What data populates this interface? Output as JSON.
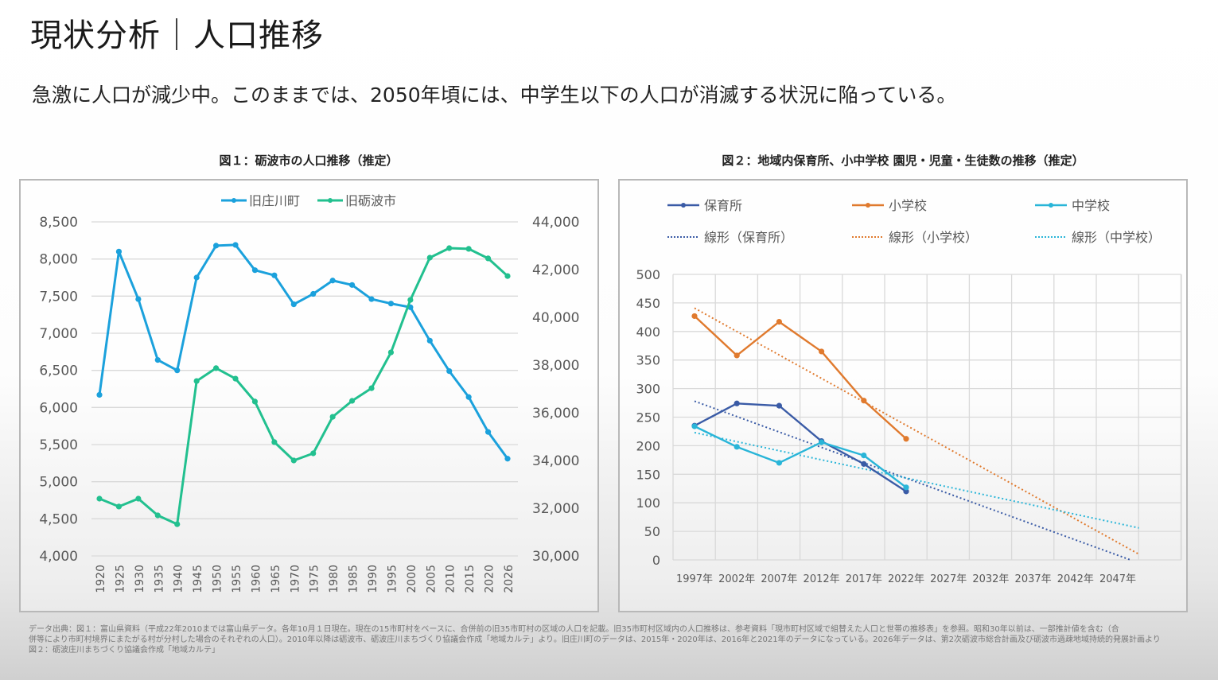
{
  "header": {
    "title": "現状分析｜人口推移",
    "subtitle": "急激に人口が減少中。このままでは、2050年頃には、中学生以下の人口が消滅する状況に陥っている。"
  },
  "colors": {
    "shogawa": "#1ba1dc",
    "tonami": "#22c08f",
    "nursery": "#3a5ba6",
    "elementary": "#e07a2e",
    "junior_high": "#29b5d8",
    "grid": "#d9d9d9",
    "axis_text": "#595959"
  },
  "chart_data": [
    {
      "type": "line",
      "title": "図１：砺波市の人口推移（推定）",
      "xlabel": "",
      "ylabel": "",
      "categories": [
        "1920",
        "1925",
        "1930",
        "1935",
        "1940",
        "1945",
        "1950",
        "1955",
        "1960",
        "1965",
        "1970",
        "1975",
        "1980",
        "1985",
        "1990",
        "1995",
        "2000",
        "2005",
        "2010",
        "2015",
        "2020",
        "2026"
      ],
      "y_left": {
        "range": [
          4000,
          8500
        ],
        "ticks": [
          "4,000",
          "4,500",
          "5,000",
          "5,500",
          "6,000",
          "6,500",
          "7,000",
          "7,500",
          "8,000",
          "8,500"
        ]
      },
      "y_right": {
        "range": [
          30000,
          44000
        ],
        "ticks": [
          "30,000",
          "32,000",
          "34,000",
          "36,000",
          "38,000",
          "40,000",
          "42,000",
          "44,000"
        ]
      },
      "grid": true,
      "legend_position": "top-center",
      "series": [
        {
          "name": "旧庄川町",
          "axis": "left",
          "values": [
            6170,
            8100,
            7460,
            6640,
            6500,
            7750,
            8180,
            8190,
            7850,
            7780,
            7390,
            7530,
            7710,
            7650,
            7460,
            7400,
            7350,
            6900,
            6490,
            6140,
            5670,
            5310
          ]
        },
        {
          "name": "旧砺波市",
          "axis": "right",
          "values": [
            32400,
            32070,
            32400,
            31700,
            31330,
            37330,
            37870,
            37430,
            36470,
            34770,
            34000,
            34300,
            35830,
            36500,
            37030,
            38530,
            40730,
            42500,
            42900,
            42870,
            42470,
            41730
          ]
        }
      ]
    },
    {
      "type": "line",
      "title": "図２：地域内保育所、小中学校 園児・児童・生徒数の推移（推定）",
      "xlabel": "",
      "ylabel": "",
      "categories": [
        "1997年",
        "2002年",
        "2007年",
        "2012年",
        "2017年",
        "2022年",
        "2027年",
        "2032年",
        "2037年",
        "2042年",
        "2047年"
      ],
      "y_range": [
        0,
        500
      ],
      "y_ticks": [
        "0",
        "50",
        "100",
        "150",
        "200",
        "250",
        "300",
        "350",
        "400",
        "450",
        "500"
      ],
      "grid": true,
      "legend_position": "top",
      "series": [
        {
          "name": "保育所",
          "values": [
            235,
            274,
            270,
            208,
            168,
            120
          ]
        },
        {
          "name": "小学校",
          "values": [
            427,
            358,
            417,
            365,
            279,
            212
          ]
        },
        {
          "name": "中学校",
          "values": [
            234,
            198,
            170,
            206,
            183,
            127
          ]
        }
      ],
      "trendlines": [
        {
          "name": "線形（保育所）",
          "start": [
            0,
            278
          ],
          "end": [
            10.3,
            0
          ]
        },
        {
          "name": "線形（小学校）",
          "start": [
            0,
            441
          ],
          "end": [
            10.5,
            10
          ]
        },
        {
          "name": "線形（中学校）",
          "start": [
            0,
            223
          ],
          "end": [
            10.5,
            56
          ]
        }
      ]
    }
  ],
  "footer": {
    "lines": [
      "データ出典：図１：富山県資料（平成22年2010までは富山県データ。各年10月１日現在。現在の15市町村をベースに、合併前の旧35市町村の区域の人口を記載。旧35市町村区域内の人口推移は、参考資料「現市町村区域で組替えた人口と世帯の推移表」を参照。昭和30年以前は、一部推計値を含む（合",
      "併等により市町村境界にまたがる村が分村した場合のそれぞれの人口）。2010年以降は砺波市、砺波庄川まちづくり協議会作成「地域カルテ」より。旧庄川町のデータは、2015年・2020年は、2016年と2021年のデータになっている。2026年データは、第2次砺波市総合計画及び砺波市過疎地域持続的発展計画より",
      "図２：砺波庄川まちづくり協議会作成「地域カルテ」"
    ]
  }
}
